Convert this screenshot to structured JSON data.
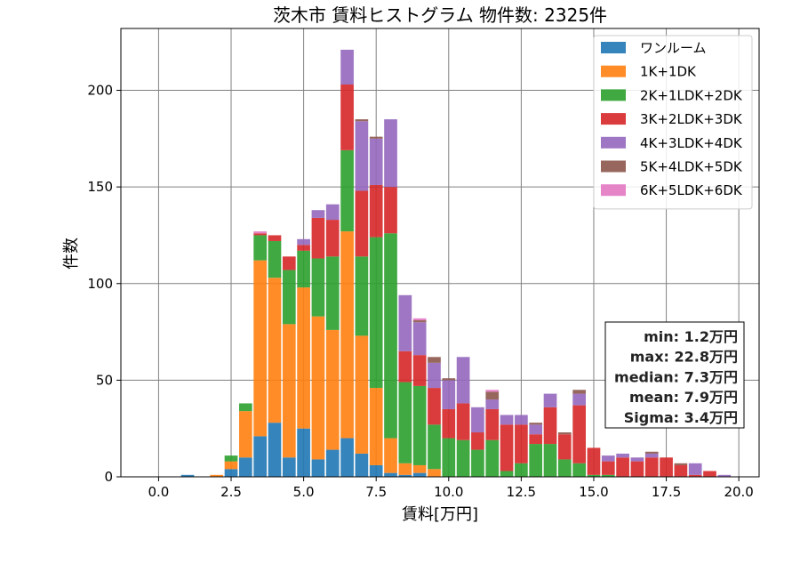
{
  "chart_data": {
    "type": "bar",
    "stacked": true,
    "title": "茨木市 賃料ヒストグラム 物件数: 2325件",
    "xlabel": "賃料[万円]",
    "ylabel": "件数",
    "xlim": [
      -1.3,
      20.7
    ],
    "ylim": [
      0,
      232
    ],
    "bin_width": 0.5,
    "x_ticks": [
      0.0,
      2.5,
      5.0,
      7.5,
      10.0,
      12.5,
      15.0,
      17.5,
      20.0
    ],
    "x_tick_labels": [
      "0.0",
      "2.5",
      "5.0",
      "7.5",
      "10.0",
      "12.5",
      "15.0",
      "17.5",
      "20.0"
    ],
    "y_ticks": [
      0,
      50,
      100,
      150,
      200
    ],
    "y_tick_labels": [
      "0",
      "50",
      "100",
      "150",
      "200"
    ],
    "grid": true,
    "legend_position": "top-right",
    "x": [
      1.0,
      2.0,
      2.5,
      3.0,
      3.5,
      4.0,
      4.5,
      5.0,
      5.5,
      6.0,
      6.5,
      7.0,
      7.5,
      8.0,
      8.5,
      9.0,
      9.5,
      10.0,
      10.5,
      11.0,
      11.5,
      12.0,
      12.5,
      13.0,
      13.5,
      14.0,
      14.5,
      15.0,
      15.5,
      16.0,
      16.5,
      17.0,
      17.5,
      18.0,
      18.5,
      19.0,
      19.5
    ],
    "series": [
      {
        "name": "ワンルーム",
        "color": "#1f77b4",
        "values": [
          1,
          0,
          4,
          10,
          21,
          28,
          10,
          25,
          9,
          14,
          20,
          12,
          6,
          2,
          1,
          2,
          0,
          0,
          0,
          0,
          0,
          0,
          0,
          0,
          0,
          0,
          0,
          0,
          0,
          0,
          0,
          0,
          0,
          0,
          0,
          0,
          0
        ]
      },
      {
        "name": "1K+1DK",
        "color": "#ff7f0e",
        "values": [
          0,
          1,
          4,
          24,
          91,
          75,
          69,
          73,
          74,
          62,
          107,
          61,
          40,
          18,
          6,
          4,
          4,
          0,
          0,
          0,
          0,
          0,
          0,
          0,
          0,
          0,
          0,
          0,
          0,
          0,
          0,
          0,
          0,
          0,
          0,
          0,
          0
        ]
      },
      {
        "name": "2K+1LDK+2DK",
        "color": "#2ca02c",
        "values": [
          0,
          0,
          3,
          4,
          13,
          19,
          28,
          19,
          30,
          38,
          42,
          41,
          78,
          106,
          42,
          41,
          23,
          20,
          19,
          14,
          19,
          3,
          7,
          17,
          17,
          9,
          7,
          1,
          1,
          0,
          0,
          0,
          0,
          0,
          0,
          0,
          0
        ]
      },
      {
        "name": "3K+2LDK+3DK",
        "color": "#d62728",
        "values": [
          0,
          0,
          0,
          0,
          1,
          3,
          7,
          3,
          21,
          19,
          34,
          34,
          27,
          24,
          16,
          16,
          19,
          15,
          19,
          9,
          16,
          24,
          20,
          5,
          19,
          13,
          30,
          14,
          7,
          10,
          8,
          10,
          10,
          6,
          1,
          3,
          0
        ]
      },
      {
        "name": "4K+3LDK+4DK",
        "color": "#9467bd",
        "values": [
          0,
          0,
          0,
          0,
          0,
          0,
          0,
          3,
          4,
          8,
          18,
          36,
          24,
          35,
          29,
          17,
          13,
          15,
          24,
          13,
          5,
          5,
          5,
          5,
          7,
          0,
          6,
          0,
          3,
          2,
          2,
          2,
          0,
          0,
          6,
          0,
          1
        ]
      },
      {
        "name": "5K+4LDK+5DK",
        "color": "#8c564b",
        "values": [
          0,
          0,
          0,
          0,
          0,
          0,
          0,
          0,
          0,
          0,
          0,
          1,
          1,
          0,
          0,
          1,
          3,
          1,
          0,
          0,
          4,
          0,
          0,
          1,
          0,
          1,
          2,
          0,
          0,
          0,
          0,
          1,
          0,
          1,
          0,
          0,
          0
        ]
      },
      {
        "name": "6K+5LDK+6DK",
        "color": "#e377c2",
        "values": [
          0,
          0,
          0,
          0,
          1,
          0,
          0,
          0,
          0,
          0,
          0,
          0,
          0,
          0,
          0,
          1,
          0,
          0,
          0,
          0,
          1,
          0,
          0,
          0,
          0,
          0,
          0,
          0,
          0,
          0,
          0,
          0,
          0,
          0,
          0,
          0,
          0
        ]
      }
    ],
    "stats_lines": [
      "min: 1.2万円",
      "max: 22.8万円",
      "median: 7.3万円",
      "mean: 7.9万円",
      "Sigma: 3.4万円"
    ]
  }
}
